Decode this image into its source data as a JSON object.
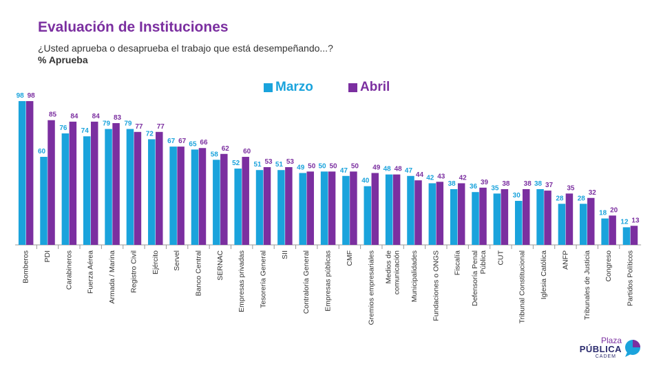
{
  "header": {
    "title": "Evaluación de Instituciones",
    "subtitle": "¿Usted aprueba o desaprueba el trabajo que está desempeñando...?",
    "unit": "% Aprueba"
  },
  "colors": {
    "marzo": "#1aa3dc",
    "abril": "#7b2fa0",
    "axis": "#999999",
    "label_text": "#333333"
  },
  "logo": {
    "line1": "Plaza",
    "line2": "PÚBLICA",
    "line3": "CADEM"
  },
  "chart_data": {
    "type": "bar",
    "title": "Evaluación de Instituciones",
    "ylim": [
      0,
      100
    ],
    "grid": false,
    "legend_position": "top-center",
    "categories": [
      "Bomberos",
      "PDI",
      "Carabineros",
      "Fuerza Aérea",
      "Armada / Marina",
      "Registro Civil",
      "Ejército",
      "Servel",
      "Banco Central",
      "SERNAC",
      "Empresas privadas",
      "Tesorería General",
      "SII",
      "Contraloría General",
      "Empresas públicas",
      "CMF",
      "Gremios empresariales",
      "Medios de comunicación",
      "Municipalidades",
      "Fundaciones o ONGS",
      "Fiscalía",
      "Defensoría Penal Pública",
      "CUT",
      "Tribunal Constitucional",
      "Iglesia Católica",
      "ANFP",
      "Tribunales de Justicia",
      "Congreso",
      "Partidos Políticos"
    ],
    "series": [
      {
        "name": "Marzo",
        "values": [
          98,
          60,
          76,
          74,
          79,
          79,
          72,
          67,
          65,
          58,
          52,
          51,
          51,
          49,
          50,
          47,
          40,
          48,
          47,
          42,
          38,
          36,
          35,
          30,
          38,
          28,
          28,
          18,
          12
        ]
      },
      {
        "name": "Abril",
        "values": [
          98,
          85,
          84,
          84,
          83,
          77,
          77,
          67,
          66,
          62,
          60,
          53,
          53,
          50,
          50,
          50,
          49,
          48,
          44,
          43,
          42,
          39,
          38,
          38,
          37,
          35,
          32,
          20,
          13
        ]
      }
    ]
  }
}
